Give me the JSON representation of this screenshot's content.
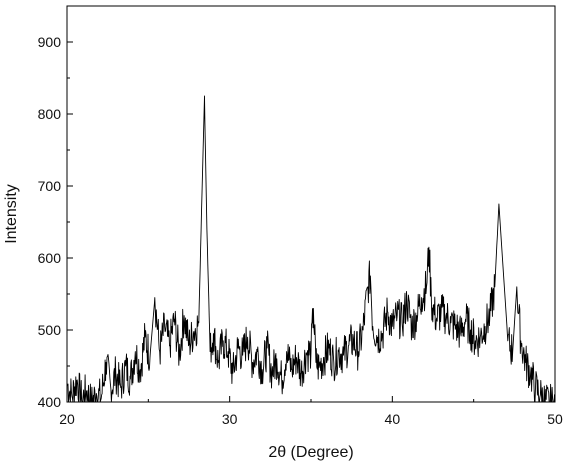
{
  "chart_data": {
    "type": "line",
    "title": "",
    "xlabel": "2θ (Degree)",
    "ylabel": "Intensity",
    "xlim": [
      20,
      50
    ],
    "ylim": [
      400,
      950
    ],
    "x_ticks": [
      20,
      30,
      40,
      50
    ],
    "y_ticks": [
      400,
      500,
      600,
      700,
      800,
      900
    ],
    "grid": false,
    "legend": "none",
    "series": [
      {
        "color": "#000000",
        "x": [
          20.0,
          20.3,
          20.6,
          20.9,
          21.2,
          21.5,
          21.8,
          22.1,
          22.4,
          22.7,
          23.0,
          23.3,
          23.6,
          23.9,
          24.2,
          24.5,
          24.8,
          25.1,
          25.4,
          25.7,
          26.0,
          26.3,
          26.6,
          26.9,
          27.2,
          27.5,
          27.8,
          28.1,
          28.3,
          28.45,
          28.6,
          28.8,
          29.0,
          29.3,
          29.6,
          29.9,
          30.2,
          30.5,
          30.8,
          31.1,
          31.4,
          31.7,
          32.0,
          32.3,
          32.6,
          32.9,
          33.2,
          33.5,
          33.8,
          34.1,
          34.4,
          34.7,
          35.0,
          35.15,
          35.3,
          35.5,
          35.8,
          36.1,
          36.4,
          36.7,
          37.0,
          37.3,
          37.6,
          37.9,
          38.2,
          38.5,
          38.65,
          38.8,
          39.1,
          39.4,
          39.7,
          40.0,
          40.3,
          40.6,
          40.9,
          41.2,
          41.5,
          41.8,
          42.1,
          42.25,
          42.4,
          42.7,
          43.0,
          43.3,
          43.6,
          43.9,
          44.2,
          44.5,
          44.8,
          45.1,
          45.4,
          45.7,
          46.0,
          46.3,
          46.55,
          46.8,
          47.1,
          47.4,
          47.65,
          47.9,
          48.2,
          48.5,
          48.8,
          49.1,
          49.4,
          49.7,
          50.0
        ],
        "y": [
          425,
          408,
          430,
          402,
          415,
          398,
          412,
          405,
          455,
          418,
          440,
          420,
          450,
          432,
          470,
          445,
          490,
          462,
          545,
          470,
          505,
          478,
          515,
          465,
          520,
          480,
          498,
          510,
          690,
          825,
          640,
          470,
          495,
          455,
          485,
          470,
          440,
          475,
          465,
          490,
          455,
          470,
          445,
          475,
          440,
          460,
          430,
          470,
          445,
          462,
          440,
          468,
          470,
          530,
          455,
          448,
          462,
          475,
          455,
          470,
          465,
          478,
          485,
          470,
          500,
          560,
          575,
          505,
          490,
          495,
          525,
          505,
          520,
          510,
          540,
          505,
          520,
          545,
          560,
          615,
          540,
          515,
          525,
          520,
          510,
          505,
          495,
          515,
          500,
          485,
          490,
          505,
          520,
          560,
          675,
          590,
          485,
          470,
          560,
          485,
          455,
          440,
          420,
          410,
          400,
          398,
          395
        ]
      }
    ]
  }
}
